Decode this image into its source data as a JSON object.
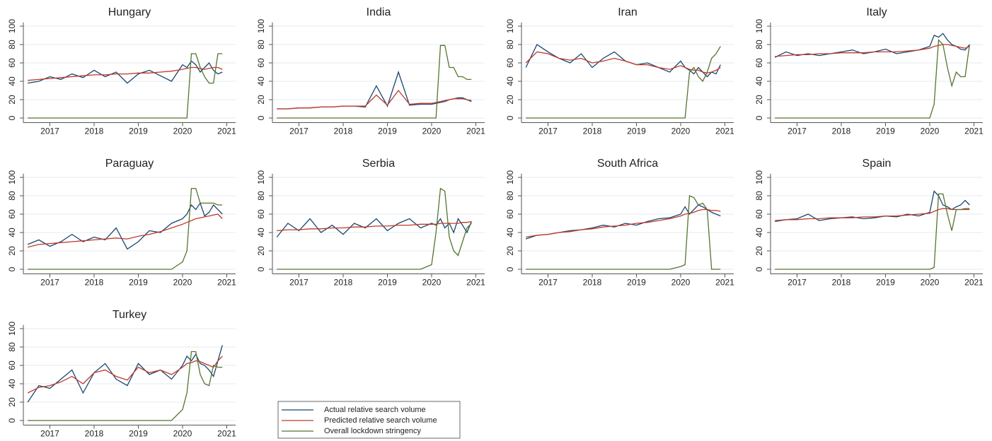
{
  "legend": [
    {
      "name": "Actual relative search volume",
      "color": "#1a476f"
    },
    {
      "name": "Predicted relative search volume",
      "color": "#c0392b"
    },
    {
      "name": "Overall lockdown stringency",
      "color": "#55752f"
    }
  ],
  "chart_data": [
    {
      "type": "line",
      "title": "Hungary",
      "x": [
        2016.5,
        2016.75,
        2017,
        2017.25,
        2017.5,
        2017.75,
        2018,
        2018.25,
        2018.5,
        2018.75,
        2019,
        2019.25,
        2019.5,
        2019.75,
        2020,
        2020.1,
        2020.2,
        2020.3,
        2020.4,
        2020.5,
        2020.6,
        2020.7,
        2020.8,
        2020.9
      ],
      "series": [
        {
          "values": [
            38,
            40,
            45,
            42,
            48,
            44,
            52,
            45,
            50,
            38,
            48,
            52,
            46,
            40,
            58,
            55,
            62,
            58,
            50,
            55,
            60,
            52,
            48,
            50
          ]
        },
        {
          "values": [
            41,
            42,
            43,
            44,
            45,
            46,
            47,
            47,
            48,
            48,
            49,
            49,
            50,
            51,
            53,
            54,
            55,
            55,
            54,
            53,
            54,
            55,
            55,
            53
          ]
        },
        {
          "values": [
            0,
            0,
            0,
            0,
            0,
            0,
            0,
            0,
            0,
            0,
            0,
            0,
            0,
            0,
            0,
            0,
            70,
            70,
            55,
            45,
            38,
            38,
            70,
            70
          ]
        }
      ],
      "xlim": [
        2016.4,
        2021.2
      ],
      "ylim": [
        -5,
        104
      ],
      "xticks": [
        2017,
        2018,
        2019,
        2020,
        2021
      ],
      "yticks": [
        0,
        20,
        40,
        60,
        80,
        100
      ],
      "grid": true
    },
    {
      "type": "line",
      "title": "India",
      "x": [
        2016.5,
        2016.75,
        2017,
        2017.25,
        2017.5,
        2017.75,
        2018,
        2018.25,
        2018.5,
        2018.75,
        2019,
        2019.25,
        2019.5,
        2019.75,
        2020,
        2020.1,
        2020.2,
        2020.3,
        2020.4,
        2020.5,
        2020.6,
        2020.7,
        2020.8,
        2020.9
      ],
      "series": [
        {
          "values": [
            10,
            10,
            11,
            11,
            12,
            12,
            13,
            13,
            12,
            35,
            13,
            50,
            14,
            15,
            15,
            16,
            17,
            18,
            20,
            21,
            22,
            22,
            20,
            18
          ]
        },
        {
          "values": [
            10,
            10,
            11,
            11,
            12,
            12,
            13,
            13,
            13,
            25,
            14,
            30,
            15,
            16,
            16,
            17,
            18,
            19,
            20,
            21,
            21,
            21,
            20,
            19
          ]
        },
        {
          "values": [
            0,
            0,
            0,
            0,
            0,
            0,
            0,
            0,
            0,
            0,
            0,
            0,
            0,
            0,
            0,
            0,
            79,
            79,
            55,
            55,
            45,
            45,
            42,
            42
          ]
        }
      ],
      "xlim": [
        2016.4,
        2021.2
      ],
      "ylim": [
        -5,
        104
      ],
      "xticks": [
        2017,
        2018,
        2019,
        2020,
        2021
      ],
      "yticks": [
        0,
        20,
        40,
        60,
        80,
        100
      ],
      "grid": true
    },
    {
      "type": "line",
      "title": "Iran",
      "x": [
        2016.5,
        2016.75,
        2017,
        2017.25,
        2017.5,
        2017.75,
        2018,
        2018.25,
        2018.5,
        2018.75,
        2019,
        2019.25,
        2019.5,
        2019.75,
        2020,
        2020.1,
        2020.2,
        2020.3,
        2020.4,
        2020.5,
        2020.6,
        2020.7,
        2020.8,
        2020.9
      ],
      "series": [
        {
          "values": [
            55,
            80,
            72,
            65,
            60,
            70,
            55,
            65,
            72,
            62,
            58,
            60,
            55,
            50,
            62,
            55,
            52,
            48,
            55,
            50,
            45,
            50,
            48,
            58
          ]
        },
        {
          "values": [
            60,
            72,
            70,
            65,
            63,
            65,
            60,
            62,
            65,
            62,
            58,
            58,
            55,
            53,
            57,
            55,
            53,
            52,
            52,
            50,
            49,
            50,
            52,
            55
          ]
        },
        {
          "values": [
            0,
            0,
            0,
            0,
            0,
            0,
            0,
            0,
            0,
            0,
            0,
            0,
            0,
            0,
            0,
            0,
            50,
            55,
            45,
            40,
            50,
            65,
            70,
            78
          ]
        }
      ],
      "xlim": [
        2016.4,
        2021.2
      ],
      "ylim": [
        -5,
        104
      ],
      "xticks": [
        2017,
        2018,
        2019,
        2020,
        2021
      ],
      "yticks": [
        0,
        20,
        40,
        60,
        80,
        100
      ],
      "grid": true
    },
    {
      "type": "line",
      "title": "Italy",
      "x": [
        2016.5,
        2016.75,
        2017,
        2017.25,
        2017.5,
        2017.75,
        2018,
        2018.25,
        2018.5,
        2018.75,
        2019,
        2019.25,
        2019.5,
        2019.75,
        2020,
        2020.1,
        2020.2,
        2020.3,
        2020.4,
        2020.5,
        2020.6,
        2020.7,
        2020.8,
        2020.9
      ],
      "series": [
        {
          "values": [
            66,
            72,
            68,
            70,
            68,
            70,
            72,
            74,
            70,
            72,
            75,
            70,
            72,
            74,
            78,
            90,
            88,
            92,
            85,
            80,
            78,
            75,
            74,
            80
          ]
        },
        {
          "values": [
            67,
            68,
            69,
            69,
            70,
            70,
            71,
            71,
            71,
            72,
            72,
            72,
            73,
            74,
            76,
            78,
            79,
            80,
            80,
            79,
            78,
            77,
            76,
            78
          ]
        },
        {
          "values": [
            0,
            0,
            0,
            0,
            0,
            0,
            0,
            0,
            0,
            0,
            0,
            0,
            0,
            0,
            0,
            15,
            85,
            80,
            55,
            35,
            50,
            45,
            45,
            80
          ]
        }
      ],
      "xlim": [
        2016.4,
        2021.2
      ],
      "ylim": [
        -5,
        104
      ],
      "xticks": [
        2017,
        2018,
        2019,
        2020,
        2021
      ],
      "yticks": [
        0,
        20,
        40,
        60,
        80,
        100
      ],
      "grid": true
    },
    {
      "type": "line",
      "title": "Paraguay",
      "x": [
        2016.5,
        2016.75,
        2017,
        2017.25,
        2017.5,
        2017.75,
        2018,
        2018.25,
        2018.5,
        2018.75,
        2019,
        2019.25,
        2019.5,
        2019.75,
        2020,
        2020.1,
        2020.2,
        2020.3,
        2020.4,
        2020.5,
        2020.6,
        2020.7,
        2020.8,
        2020.9
      ],
      "series": [
        {
          "values": [
            27,
            32,
            25,
            30,
            38,
            30,
            35,
            32,
            45,
            22,
            30,
            42,
            40,
            50,
            55,
            60,
            70,
            65,
            72,
            58,
            62,
            70,
            65,
            60
          ]
        },
        {
          "values": [
            24,
            27,
            28,
            29,
            30,
            31,
            32,
            33,
            34,
            33,
            36,
            38,
            41,
            45,
            49,
            51,
            53,
            55,
            56,
            57,
            58,
            59,
            60,
            55
          ]
        },
        {
          "values": [
            0,
            0,
            0,
            0,
            0,
            0,
            0,
            0,
            0,
            0,
            0,
            0,
            0,
            0,
            8,
            20,
            88,
            88,
            72,
            72,
            72,
            72,
            70,
            70
          ]
        }
      ],
      "xlim": [
        2016.4,
        2021.2
      ],
      "ylim": [
        -5,
        104
      ],
      "xticks": [
        2017,
        2018,
        2019,
        2020,
        2021
      ],
      "yticks": [
        0,
        20,
        40,
        60,
        80,
        100
      ],
      "grid": true
    },
    {
      "type": "line",
      "title": "Serbia",
      "x": [
        2016.5,
        2016.75,
        2017,
        2017.25,
        2017.5,
        2017.75,
        2018,
        2018.25,
        2018.5,
        2018.75,
        2019,
        2019.25,
        2019.5,
        2019.75,
        2020,
        2020.1,
        2020.2,
        2020.3,
        2020.4,
        2020.5,
        2020.6,
        2020.7,
        2020.8,
        2020.9
      ],
      "series": [
        {
          "values": [
            35,
            50,
            42,
            55,
            40,
            48,
            38,
            50,
            45,
            55,
            42,
            50,
            55,
            45,
            50,
            48,
            55,
            45,
            50,
            40,
            55,
            48,
            40,
            52
          ]
        },
        {
          "values": [
            42,
            43,
            43,
            44,
            44,
            45,
            45,
            46,
            46,
            47,
            47,
            48,
            48,
            49,
            49,
            49,
            50,
            50,
            50,
            50,
            50,
            51,
            51,
            52
          ]
        },
        {
          "values": [
            0,
            0,
            0,
            0,
            0,
            0,
            0,
            0,
            0,
            0,
            0,
            0,
            0,
            0,
            5,
            40,
            88,
            85,
            35,
            20,
            15,
            30,
            45,
            50
          ]
        }
      ],
      "xlim": [
        2016.4,
        2021.2
      ],
      "ylim": [
        -5,
        104
      ],
      "xticks": [
        2017,
        2018,
        2019,
        2020,
        2021
      ],
      "yticks": [
        0,
        20,
        40,
        60,
        80,
        100
      ],
      "grid": true
    },
    {
      "type": "line",
      "title": "South Africa",
      "x": [
        2016.5,
        2016.75,
        2017,
        2017.25,
        2017.5,
        2017.75,
        2018,
        2018.25,
        2018.5,
        2018.75,
        2019,
        2019.25,
        2019.5,
        2019.75,
        2020,
        2020.1,
        2020.2,
        2020.3,
        2020.4,
        2020.5,
        2020.6,
        2020.7,
        2020.8,
        2020.9
      ],
      "series": [
        {
          "values": [
            33,
            37,
            38,
            40,
            42,
            43,
            45,
            48,
            46,
            50,
            48,
            52,
            55,
            56,
            60,
            68,
            60,
            65,
            70,
            68,
            65,
            62,
            60,
            58
          ]
        },
        {
          "values": [
            35,
            37,
            38,
            40,
            41,
            43,
            44,
            46,
            47,
            48,
            50,
            51,
            53,
            55,
            58,
            60,
            61,
            62,
            64,
            65,
            65,
            64,
            64,
            63
          ]
        },
        {
          "values": [
            0,
            0,
            0,
            0,
            0,
            0,
            0,
            0,
            0,
            0,
            0,
            0,
            0,
            0,
            3,
            5,
            80,
            78,
            70,
            72,
            65,
            0,
            0,
            0
          ]
        }
      ],
      "xlim": [
        2016.4,
        2021.2
      ],
      "ylim": [
        -5,
        104
      ],
      "xticks": [
        2017,
        2018,
        2019,
        2020,
        2021
      ],
      "yticks": [
        0,
        20,
        40,
        60,
        80,
        100
      ],
      "grid": true
    },
    {
      "type": "line",
      "title": "Spain",
      "x": [
        2016.5,
        2016.75,
        2017,
        2017.25,
        2017.5,
        2017.75,
        2018,
        2018.25,
        2018.5,
        2018.75,
        2019,
        2019.25,
        2019.5,
        2019.75,
        2020,
        2020.1,
        2020.2,
        2020.3,
        2020.4,
        2020.5,
        2020.6,
        2020.7,
        2020.8,
        2020.9
      ],
      "series": [
        {
          "values": [
            52,
            54,
            55,
            60,
            53,
            55,
            56,
            57,
            55,
            56,
            58,
            57,
            60,
            58,
            62,
            85,
            80,
            70,
            68,
            65,
            68,
            70,
            75,
            70
          ]
        },
        {
          "values": [
            53,
            54,
            54,
            55,
            55,
            56,
            56,
            56,
            57,
            57,
            58,
            58,
            59,
            60,
            61,
            63,
            65,
            66,
            66,
            65,
            65,
            65,
            66,
            66
          ]
        },
        {
          "values": [
            0,
            0,
            0,
            0,
            0,
            0,
            0,
            0,
            0,
            0,
            0,
            0,
            0,
            0,
            0,
            2,
            82,
            82,
            60,
            42,
            65,
            65,
            65,
            65
          ]
        }
      ],
      "xlim": [
        2016.4,
        2021.2
      ],
      "ylim": [
        -5,
        104
      ],
      "xticks": [
        2017,
        2018,
        2019,
        2020,
        2021
      ],
      "yticks": [
        0,
        20,
        40,
        60,
        80,
        100
      ],
      "grid": true
    },
    {
      "type": "line",
      "title": "Turkey",
      "x": [
        2016.5,
        2016.75,
        2017,
        2017.25,
        2017.5,
        2017.75,
        2018,
        2018.25,
        2018.5,
        2018.75,
        2019,
        2019.25,
        2019.5,
        2019.75,
        2020,
        2020.1,
        2020.2,
        2020.3,
        2020.4,
        2020.5,
        2020.6,
        2020.7,
        2020.8,
        2020.9
      ],
      "series": [
        {
          "values": [
            20,
            38,
            35,
            45,
            55,
            30,
            52,
            62,
            45,
            38,
            62,
            50,
            55,
            45,
            60,
            70,
            65,
            72,
            62,
            60,
            55,
            48,
            65,
            82
          ]
        },
        {
          "values": [
            30,
            36,
            38,
            42,
            48,
            40,
            52,
            55,
            48,
            44,
            58,
            52,
            55,
            50,
            58,
            62,
            63,
            65,
            64,
            62,
            60,
            58,
            65,
            70
          ]
        },
        {
          "values": [
            0,
            0,
            0,
            0,
            0,
            0,
            0,
            0,
            0,
            0,
            0,
            0,
            0,
            0,
            12,
            30,
            75,
            75,
            50,
            40,
            38,
            60,
            58,
            58
          ]
        }
      ],
      "xlim": [
        2016.4,
        2021.2
      ],
      "ylim": [
        -5,
        104
      ],
      "xticks": [
        2017,
        2018,
        2019,
        2020,
        2021
      ],
      "yticks": [
        0,
        20,
        40,
        60,
        80,
        100
      ],
      "grid": true
    }
  ]
}
